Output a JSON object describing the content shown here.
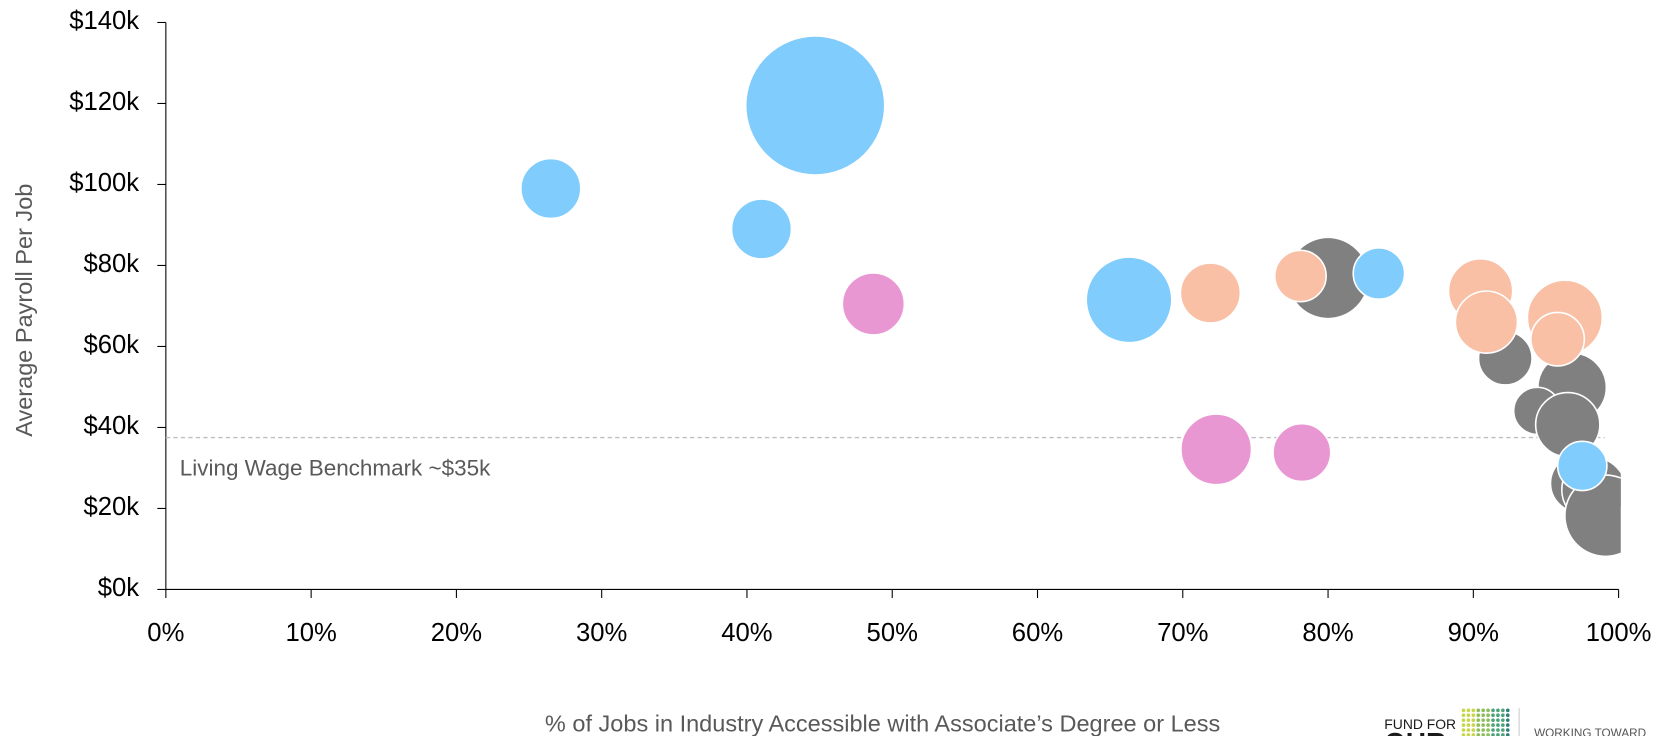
{
  "chart_data": {
    "type": "bubble",
    "x_label": "% of Jobs in Industry Accessible with Associate’s Degree or Less",
    "y_label": "Average Payroll Per Job",
    "xlim": [
      0,
      100
    ],
    "xticks": [
      {
        "value": 0,
        "label": "0%"
      },
      {
        "value": 10,
        "label": "10%"
      },
      {
        "value": 20,
        "label": "20%"
      },
      {
        "value": 30,
        "label": "30%"
      },
      {
        "value": 40,
        "label": "40%"
      },
      {
        "value": 50,
        "label": "50%"
      },
      {
        "value": 60,
        "label": "60%"
      },
      {
        "value": 70,
        "label": "70%"
      },
      {
        "value": 80,
        "label": "80%"
      },
      {
        "value": 90,
        "label": "90%"
      },
      {
        "value": 100,
        "label": "100%"
      }
    ],
    "ylim": [
      0,
      140000
    ],
    "yticks": [
      {
        "value": 0,
        "label": "$0k"
      },
      {
        "value": 20000,
        "label": "$20k"
      },
      {
        "value": 40000,
        "label": "$40k"
      },
      {
        "value": 60000,
        "label": "$60k"
      },
      {
        "value": 80000,
        "label": "$80k"
      },
      {
        "value": 100000,
        "label": "$100k"
      },
      {
        "value": 120000,
        "label": "$120k"
      },
      {
        "value": 140000,
        "label": "$140k"
      }
    ],
    "benchmark": {
      "value": 37500,
      "label": "Living Wage Benchmark ~$35k",
      "color": "#bfbfbf"
    },
    "series": [
      {
        "color": "#808080",
        "x": [
          80.0,
          92.2,
          96.8,
          94.4,
          96.5,
          97.3,
          98.3,
          99.1
        ],
        "values": [
          76900,
          57100,
          49900,
          44100,
          40700,
          26200,
          24600,
          18200
        ],
        "sizes": [
          38,
          25,
          32,
          22,
          30,
          27,
          30,
          38
        ]
      },
      {
        "color": "#f9c0a6",
        "x": [
          71.9,
          78.1,
          90.5,
          90.9,
          96.3,
          95.8
        ],
        "values": [
          73200,
          77400,
          73700,
          66000,
          67100,
          61800
        ],
        "sizes": [
          28,
          24,
          30,
          29,
          35,
          25
        ]
      },
      {
        "color": "#e997d2",
        "x": [
          48.7,
          72.3,
          78.2
        ],
        "values": [
          70500,
          34600,
          33800
        ],
        "sizes": [
          29,
          33,
          27
        ]
      },
      {
        "color": "#80ccfc",
        "x": [
          26.5,
          44.7,
          41.0,
          66.3,
          83.5,
          97.5
        ],
        "values": [
          99000,
          119500,
          89000,
          71500,
          78000,
          30500
        ],
        "sizes": [
          28,
          65,
          28,
          40,
          24,
          23
        ]
      }
    ]
  },
  "logo": {
    "line1": "FUND FOR",
    "line2": "OUR",
    "tagline": "WORKING TOWARD"
  }
}
